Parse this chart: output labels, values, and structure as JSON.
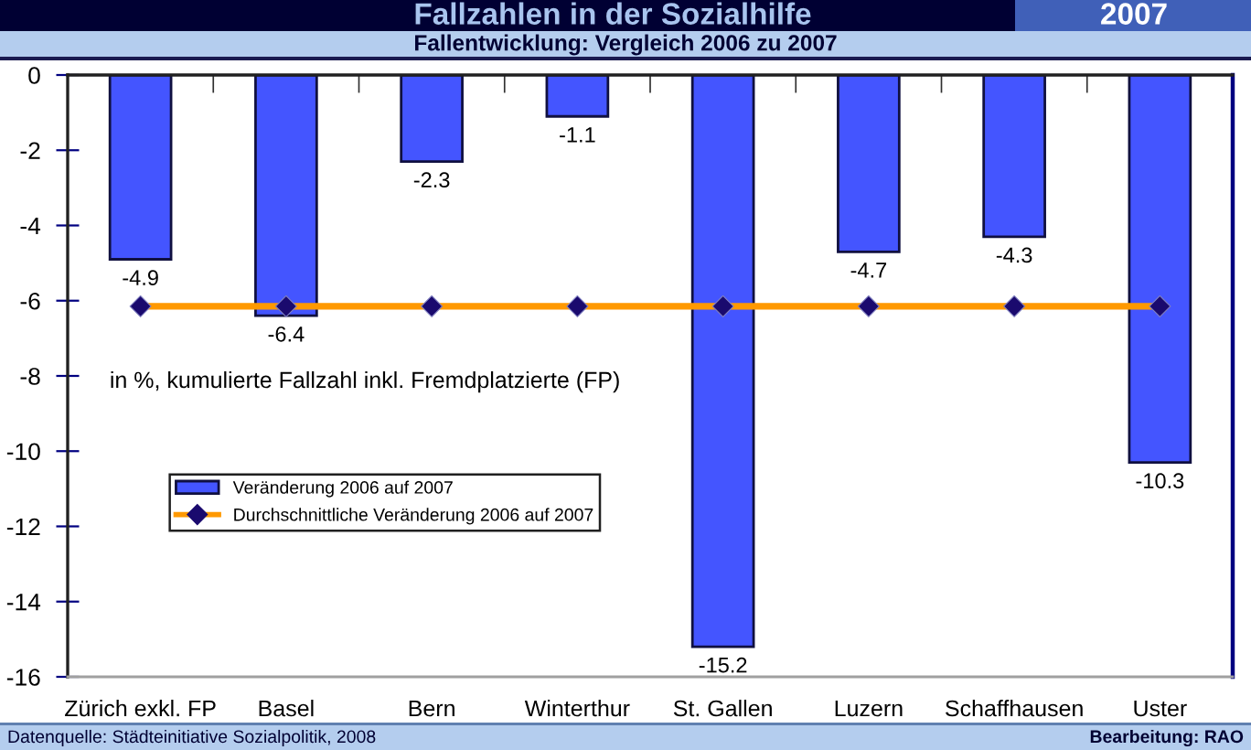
{
  "chart_data": {
    "type": "bar",
    "title": "Fallzahlen in der Sozialhilfe",
    "subtitle": "Fallentwicklung: Vergleich 2006 zu 2007",
    "categories": [
      "Zürich exkl. FP",
      "Basel",
      "Bern",
      "Winterthur",
      "St. Gallen",
      "Luzern",
      "Schaffhausen",
      "Uster"
    ],
    "series": [
      {
        "name": "Veränderung 2006 auf 2007",
        "color": "#4455ff",
        "values": [
          -4.9,
          -6.4,
          -2.3,
          -1.1,
          -15.2,
          -4.7,
          -4.3,
          -10.3
        ],
        "value_labels": [
          "-4.9",
          "-6.4",
          "-2.3",
          "-1.1",
          "-15.2",
          "-4.7",
          "-4.3",
          "-10.3"
        ]
      },
      {
        "name": "Durchschnittliche Veränderung 2006 auf 2007",
        "type": "line",
        "color": "#ff9900",
        "marker": "diamond",
        "colors": [
          "#1a0a6e",
          "#1a0a6e",
          "#1a0a6e",
          "#1a0a6e",
          "#1a0a6e",
          "#1a0a6e",
          "#1a0a6e",
          "#1a0a6e"
        ],
        "values": [
          -6.15,
          -6.15,
          -6.15,
          -6.15,
          -6.15,
          -6.15,
          -6.15,
          -6.15
        ]
      }
    ],
    "ylim": [
      -16,
      0
    ],
    "yticks": [
      -16,
      -14,
      -12,
      -10,
      -8,
      -6,
      -4,
      -2,
      0
    ],
    "legend": "lower left",
    "annotations": [
      "2007",
      "in %, kumulierte Fallzahl inkl. Fremdplatzierte (FP)",
      "Datenquelle: Städteinitiative Sozialpolitik, 2008",
      "Bearbeitung: RAO"
    ]
  }
}
